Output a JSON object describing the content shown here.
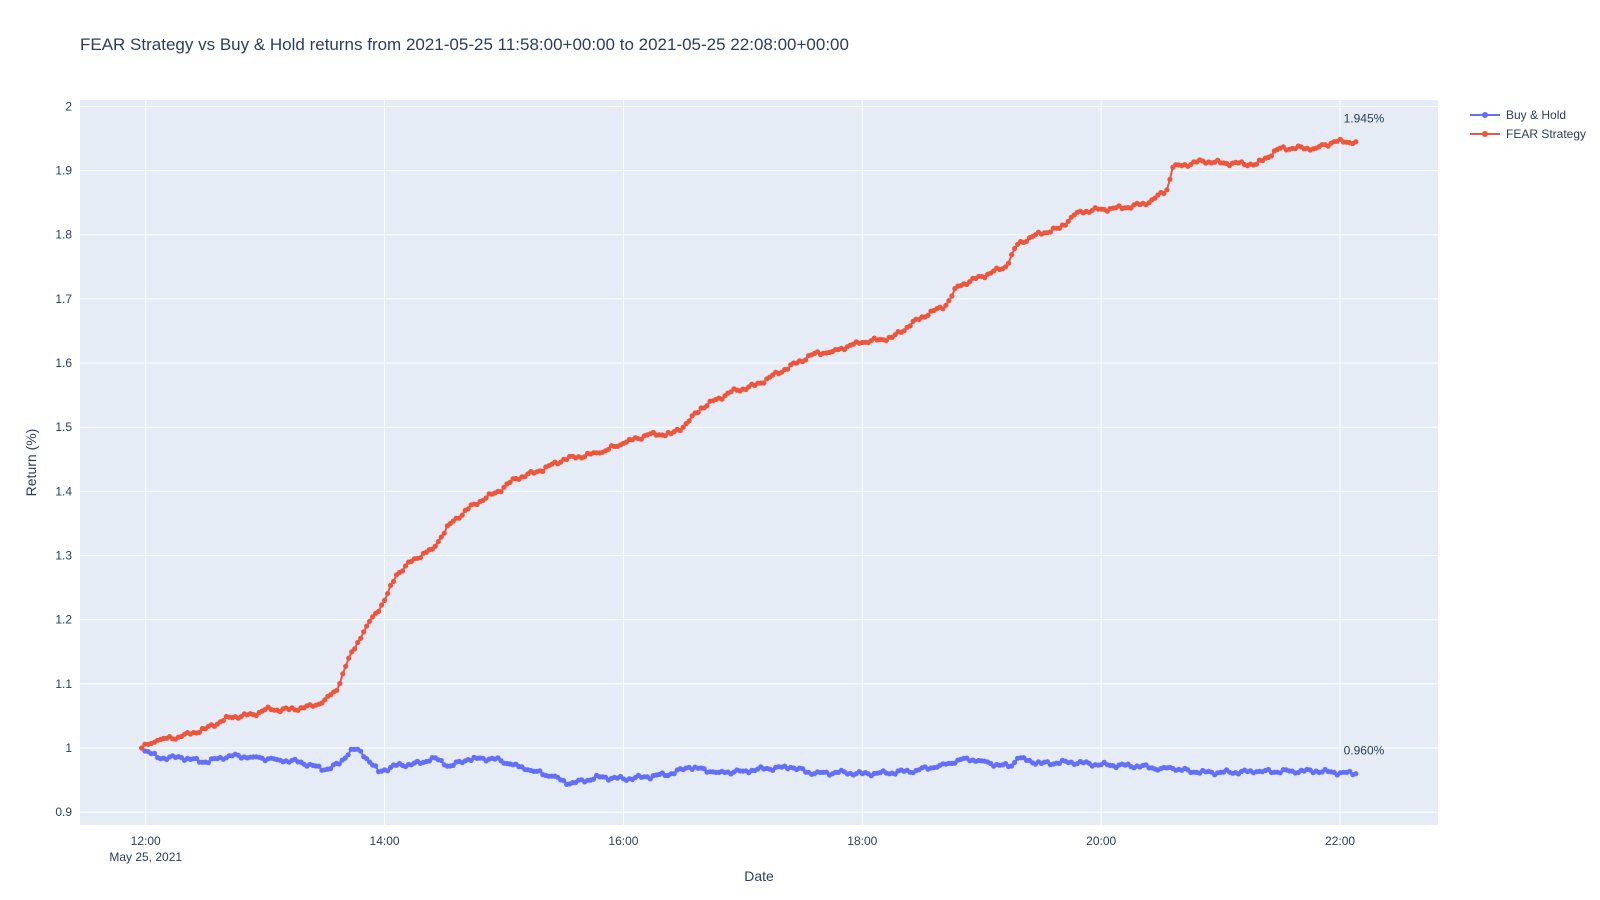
{
  "chart_data": {
    "type": "line",
    "title": "FEAR Strategy vs Buy & Hold returns from 2021-05-25 11:58:00+00:00 to 2021-05-25 22:08:00+00:00",
    "xlabel": "Date",
    "ylabel": "Return (%)",
    "x_ticks": [
      "12:00",
      "14:00",
      "16:00",
      "18:00",
      "20:00",
      "22:00"
    ],
    "x_tick_hours": [
      12,
      14,
      16,
      18,
      20,
      22
    ],
    "x_subtitle": "May 25, 2021",
    "xlim_hours": [
      11.45,
      22.82
    ],
    "y_ticks": [
      "0.9",
      "1",
      "1.1",
      "1.2",
      "1.3",
      "1.4",
      "1.5",
      "1.6",
      "1.7",
      "1.8",
      "1.9",
      "2"
    ],
    "y_tick_values": [
      0.9,
      1.0,
      1.1,
      1.2,
      1.3,
      1.4,
      1.5,
      1.6,
      1.7,
      1.8,
      1.9,
      2.0
    ],
    "ylim": [
      0.88,
      2.01
    ],
    "grid": true,
    "legend_position": "top-right",
    "background": "#e5ecf6",
    "series": [
      {
        "name": "Buy & Hold",
        "color": "#636efa",
        "final_label": "0.960%",
        "final_value": 0.96,
        "points": [
          [
            11.967,
            1.0
          ],
          [
            12.1,
            0.985
          ],
          [
            12.3,
            0.985
          ],
          [
            12.5,
            0.978
          ],
          [
            12.7,
            0.988
          ],
          [
            12.9,
            0.986
          ],
          [
            13.1,
            0.982
          ],
          [
            13.3,
            0.978
          ],
          [
            13.5,
            0.966
          ],
          [
            13.62,
            0.975
          ],
          [
            13.72,
            0.998
          ],
          [
            13.8,
            0.995
          ],
          [
            13.95,
            0.963
          ],
          [
            14.1,
            0.973
          ],
          [
            14.3,
            0.976
          ],
          [
            14.4,
            0.985
          ],
          [
            14.55,
            0.972
          ],
          [
            14.7,
            0.982
          ],
          [
            14.9,
            0.984
          ],
          [
            15.05,
            0.975
          ],
          [
            15.2,
            0.966
          ],
          [
            15.4,
            0.956
          ],
          [
            15.55,
            0.944
          ],
          [
            15.8,
            0.955
          ],
          [
            16.0,
            0.952
          ],
          [
            16.2,
            0.955
          ],
          [
            16.4,
            0.96
          ],
          [
            16.55,
            0.97
          ],
          [
            16.8,
            0.962
          ],
          [
            17.0,
            0.964
          ],
          [
            17.2,
            0.968
          ],
          [
            17.4,
            0.97
          ],
          [
            17.6,
            0.96
          ],
          [
            17.8,
            0.962
          ],
          [
            18.0,
            0.96
          ],
          [
            18.2,
            0.961
          ],
          [
            18.45,
            0.965
          ],
          [
            18.65,
            0.973
          ],
          [
            18.75,
            0.976
          ],
          [
            18.85,
            0.984
          ],
          [
            19.0,
            0.98
          ],
          [
            19.15,
            0.973
          ],
          [
            19.25,
            0.972
          ],
          [
            19.3,
            0.984
          ],
          [
            19.5,
            0.976
          ],
          [
            19.75,
            0.978
          ],
          [
            20.0,
            0.974
          ],
          [
            20.3,
            0.972
          ],
          [
            20.5,
            0.968
          ],
          [
            20.6,
            0.968
          ],
          [
            20.8,
            0.962
          ],
          [
            21.0,
            0.962
          ],
          [
            21.3,
            0.963
          ],
          [
            21.6,
            0.964
          ],
          [
            21.8,
            0.964
          ],
          [
            21.95,
            0.962
          ],
          [
            22.133,
            0.96
          ]
        ]
      },
      {
        "name": "FEAR Strategy",
        "color": "#ef553b",
        "final_label": "1.945%",
        "final_value": 1.945,
        "points": [
          [
            11.967,
            1.0
          ],
          [
            12.1,
            1.012
          ],
          [
            12.3,
            1.018
          ],
          [
            12.5,
            1.03
          ],
          [
            12.7,
            1.048
          ],
          [
            12.9,
            1.052
          ],
          [
            13.0,
            1.06
          ],
          [
            13.2,
            1.06
          ],
          [
            13.4,
            1.065
          ],
          [
            13.5,
            1.075
          ],
          [
            13.6,
            1.09
          ],
          [
            13.7,
            1.14
          ],
          [
            13.85,
            1.19
          ],
          [
            14.0,
            1.23
          ],
          [
            14.1,
            1.27
          ],
          [
            14.25,
            1.295
          ],
          [
            14.4,
            1.31
          ],
          [
            14.55,
            1.35
          ],
          [
            14.75,
            1.38
          ],
          [
            14.95,
            1.4
          ],
          [
            15.1,
            1.42
          ],
          [
            15.3,
            1.432
          ],
          [
            15.5,
            1.45
          ],
          [
            15.8,
            1.46
          ],
          [
            16.0,
            1.475
          ],
          [
            16.2,
            1.488
          ],
          [
            16.4,
            1.49
          ],
          [
            16.5,
            1.5
          ],
          [
            16.65,
            1.53
          ],
          [
            16.9,
            1.555
          ],
          [
            17.1,
            1.565
          ],
          [
            17.35,
            1.59
          ],
          [
            17.6,
            1.615
          ],
          [
            17.75,
            1.618
          ],
          [
            17.9,
            1.628
          ],
          [
            18.0,
            1.632
          ],
          [
            18.25,
            1.64
          ],
          [
            18.5,
            1.672
          ],
          [
            18.7,
            1.69
          ],
          [
            18.8,
            1.72
          ],
          [
            19.0,
            1.735
          ],
          [
            19.2,
            1.75
          ],
          [
            19.3,
            1.785
          ],
          [
            19.45,
            1.8
          ],
          [
            19.65,
            1.81
          ],
          [
            19.8,
            1.835
          ],
          [
            20.0,
            1.84
          ],
          [
            20.2,
            1.842
          ],
          [
            20.4,
            1.85
          ],
          [
            20.55,
            1.87
          ],
          [
            20.6,
            1.905
          ],
          [
            20.85,
            1.915
          ],
          [
            21.0,
            1.912
          ],
          [
            21.3,
            1.91
          ],
          [
            21.5,
            1.935
          ],
          [
            21.8,
            1.935
          ],
          [
            21.95,
            1.945
          ],
          [
            22.133,
            1.945
          ]
        ]
      }
    ]
  }
}
